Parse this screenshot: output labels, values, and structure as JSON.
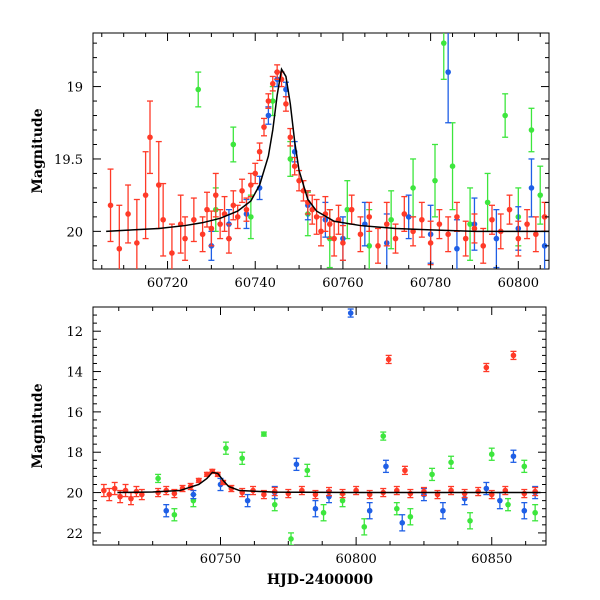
{
  "chart_data": [
    {
      "type": "scatter",
      "panel": "top",
      "ylabel": "Magnitude",
      "xlabel": "",
      "xlim": [
        60703,
        60807
      ],
      "ylim": [
        20.26,
        18.63
      ],
      "y_inverted": true,
      "x_ticks": [
        60720,
        60740,
        60760,
        60780,
        60800
      ],
      "y_ticks": [
        19,
        19.5,
        20
      ],
      "x_tick_labels": [
        "60720",
        "60740",
        "60760",
        "60780",
        "60800"
      ],
      "y_tick_labels": [
        "19",
        "19.5",
        "20"
      ],
      "grid": false,
      "legend": "none",
      "model_curve": {
        "color": "#000000",
        "x": [
          60706,
          60712,
          60718,
          60724,
          60728,
          60732,
          60736,
          60739,
          60741,
          60743,
          60744,
          60745,
          60746,
          60747,
          60748,
          60749,
          60750,
          60752,
          60754,
          60758,
          60764,
          60772,
          60780,
          60790,
          60800,
          60807
        ],
        "y": [
          20.0,
          19.99,
          19.98,
          19.96,
          19.94,
          19.91,
          19.86,
          19.79,
          19.68,
          19.48,
          19.3,
          19.06,
          18.88,
          18.93,
          19.12,
          19.38,
          19.58,
          19.78,
          19.86,
          19.93,
          19.96,
          19.98,
          19.99,
          20.0,
          20.0,
          20.0
        ]
      },
      "series": [
        {
          "color": "#ff3a28",
          "x": [
            60707,
            60709,
            60711,
            60713,
            60715,
            60716,
            60718,
            60719,
            60721,
            60723,
            60724,
            60726,
            60728,
            60729,
            60730,
            60731,
            60732,
            60733,
            60734,
            60735,
            60736,
            60737,
            60738,
            60739,
            60740,
            60741,
            60742,
            60743,
            60744,
            60745,
            60746,
            60747,
            60748,
            60749,
            60750,
            60751,
            60752,
            60753,
            60754,
            60755,
            60756,
            60757,
            60758,
            60759,
            60760,
            60762,
            60764,
            60766,
            60768,
            60770,
            60772,
            60774,
            60776,
            60778,
            60780,
            60782,
            60784,
            60786,
            60788,
            60790,
            60792,
            60794,
            60796,
            60798,
            60800,
            60802,
            60804,
            60806
          ],
          "y": [
            19.82,
            20.12,
            19.88,
            20.08,
            19.75,
            19.35,
            19.68,
            19.92,
            20.15,
            19.95,
            20.05,
            19.92,
            20.02,
            19.85,
            19.98,
            19.75,
            19.95,
            19.88,
            20.05,
            19.82,
            19.9,
            19.72,
            19.85,
            19.68,
            19.6,
            19.45,
            19.28,
            19.1,
            18.98,
            18.9,
            18.95,
            19.12,
            19.35,
            19.55,
            19.65,
            19.72,
            19.8,
            19.85,
            19.9,
            20.0,
            19.88,
            19.95,
            20.05,
            19.92,
            20.08,
            19.85,
            20.02,
            19.9,
            20.1,
            19.95,
            20.05,
            19.88,
            20.0,
            19.92,
            20.08,
            19.95,
            20.02,
            19.9,
            20.05,
            19.98,
            20.1,
            19.92,
            20.0,
            19.85,
            20.05,
            19.95,
            20.02,
            19.9
          ],
          "err": [
            0.25,
            0.3,
            0.2,
            0.3,
            0.3,
            0.25,
            0.3,
            0.25,
            0.2,
            0.2,
            0.15,
            0.15,
            0.12,
            0.12,
            0.12,
            0.15,
            0.1,
            0.12,
            0.1,
            0.1,
            0.08,
            0.08,
            0.08,
            0.08,
            0.07,
            0.06,
            0.06,
            0.05,
            0.05,
            0.05,
            0.05,
            0.05,
            0.06,
            0.06,
            0.07,
            0.07,
            0.08,
            0.1,
            0.12,
            0.1,
            0.12,
            0.1,
            0.12,
            0.1,
            0.12,
            0.1,
            0.12,
            0.1,
            0.12,
            0.15,
            0.1,
            0.12,
            0.1,
            0.12,
            0.15,
            0.1,
            0.12,
            0.1,
            0.12,
            0.1,
            0.12,
            0.1,
            0.12,
            0.1,
            0.12,
            0.1,
            0.12,
            0.1
          ]
        },
        {
          "color": "#1f5fe6",
          "x": [
            60730,
            60734,
            60738,
            60741,
            60743,
            60745,
            60747,
            60749,
            60752,
            60756,
            60760,
            60765,
            60770,
            60775,
            60780,
            60784,
            60786,
            60790,
            60795,
            60800,
            60803,
            60806
          ],
          "y": [
            20.1,
            19.95,
            19.88,
            19.7,
            19.2,
            18.95,
            19.02,
            19.45,
            19.82,
            19.92,
            20.05,
            19.95,
            20.08,
            19.9,
            20.02,
            18.9,
            20.12,
            19.95,
            20.05,
            19.98,
            19.7,
            20.1
          ],
          "err": [
            0.1,
            0.1,
            0.1,
            0.08,
            0.06,
            0.05,
            0.05,
            0.07,
            0.1,
            0.12,
            0.15,
            0.15,
            0.2,
            0.15,
            0.2,
            0.35,
            0.2,
            0.18,
            0.2,
            0.15,
            0.2,
            0.2
          ]
        },
        {
          "color": "#3de63d",
          "x": [
            60727,
            60731,
            60735,
            60739,
            60744,
            60748,
            60752,
            60757,
            60761,
            60766,
            60771,
            60776,
            60781,
            60783,
            60785,
            60789,
            60793,
            60797,
            60800,
            60803,
            60805
          ],
          "y": [
            19.02,
            19.85,
            19.4,
            19.9,
            19.1,
            19.5,
            19.88,
            20.05,
            19.85,
            20.1,
            19.92,
            19.7,
            19.65,
            18.7,
            19.55,
            19.95,
            19.8,
            19.2,
            19.9,
            19.3,
            19.75
          ],
          "err": [
            0.12,
            0.15,
            0.12,
            0.15,
            0.1,
            0.12,
            0.15,
            0.2,
            0.2,
            0.25,
            0.2,
            0.2,
            0.25,
            0.25,
            0.3,
            0.25,
            0.2,
            0.15,
            0.2,
            0.15,
            0.2
          ]
        }
      ]
    },
    {
      "type": "scatter",
      "panel": "bottom",
      "ylabel": "Magnitude",
      "xlabel": "HJD-2400000",
      "xlim": [
        60703,
        60870
      ],
      "ylim": [
        22.6,
        10.8
      ],
      "y_inverted": true,
      "x_ticks": [
        60750,
        60800,
        60850
      ],
      "y_ticks": [
        12,
        14,
        16,
        18,
        20,
        22
      ],
      "x_tick_labels": [
        "60750",
        "60800",
        "60850"
      ],
      "y_tick_labels": [
        "12",
        "14",
        "16",
        "18",
        "20",
        "22"
      ],
      "grid": false,
      "legend": "none",
      "model_curve": {
        "color": "#000000",
        "x": [
          60712,
          60725,
          60735,
          60742,
          60745,
          60747,
          60749,
          60751,
          60753,
          60757,
          60770,
          60800,
          60850,
          60868
        ],
        "y": [
          20.0,
          19.97,
          19.9,
          19.6,
          19.3,
          19.0,
          19.05,
          19.4,
          19.7,
          19.9,
          19.98,
          20.0,
          20.0,
          20.0
        ]
      },
      "series": [
        {
          "color": "#ff3a28",
          "x": [
            60707,
            60709,
            60711,
            60713,
            60715,
            60717,
            60719,
            60721,
            60727,
            60730,
            60733,
            60736,
            60739,
            60742,
            60745,
            60747,
            60749,
            60751,
            60754,
            60758,
            60762,
            60766,
            60770,
            60775,
            60780,
            60785,
            60790,
            60795,
            60800,
            60805,
            60810,
            60812,
            60815,
            60818,
            60820,
            60825,
            60830,
            60835,
            60840,
            60845,
            60848,
            60850,
            60855,
            60858,
            60862,
            60866
          ],
          "y": [
            19.9,
            20.1,
            19.8,
            20.2,
            19.9,
            20.3,
            19.95,
            20.1,
            20.0,
            19.9,
            20.05,
            19.8,
            19.7,
            19.4,
            19.1,
            18.95,
            19.1,
            19.5,
            19.8,
            20.0,
            19.9,
            20.1,
            19.95,
            20.05,
            19.9,
            20.1,
            19.95,
            20.05,
            19.9,
            20.1,
            20.0,
            13.4,
            19.9,
            18.9,
            20.05,
            19.95,
            20.1,
            19.9,
            20.05,
            19.95,
            13.8,
            20.1,
            19.9,
            13.2,
            20.05,
            19.95
          ],
          "err": [
            0.3,
            0.3,
            0.3,
            0.3,
            0.3,
            0.3,
            0.25,
            0.25,
            0.2,
            0.2,
            0.2,
            0.15,
            0.15,
            0.1,
            0.1,
            0.1,
            0.1,
            0.1,
            0.15,
            0.2,
            0.2,
            0.2,
            0.2,
            0.2,
            0.2,
            0.2,
            0.2,
            0.2,
            0.2,
            0.2,
            0.2,
            0.2,
            0.2,
            0.2,
            0.2,
            0.2,
            0.2,
            0.2,
            0.2,
            0.2,
            0.2,
            0.2,
            0.2,
            0.2,
            0.2,
            0.2
          ]
        },
        {
          "color": "#1f5fe6",
          "x": [
            60730,
            60740,
            60750,
            60760,
            60770,
            60778,
            60785,
            60790,
            60798,
            60805,
            60811,
            60817,
            60825,
            60832,
            60840,
            60848,
            60853,
            60858,
            60862,
            60866
          ],
          "y": [
            20.9,
            20.1,
            19.6,
            20.4,
            20.0,
            18.6,
            20.8,
            20.2,
            11.1,
            20.9,
            18.7,
            21.5,
            20.1,
            20.9,
            20.3,
            19.8,
            20.4,
            18.2,
            20.9,
            20.0
          ],
          "err": [
            0.3,
            0.2,
            0.3,
            0.3,
            0.3,
            0.3,
            0.4,
            0.3,
            0.2,
            0.4,
            0.3,
            0.4,
            0.3,
            0.4,
            0.3,
            0.3,
            0.4,
            0.3,
            0.4,
            0.3
          ]
        },
        {
          "color": "#3de63d",
          "x": [
            60727,
            60733,
            60740,
            60752,
            60758,
            60766,
            60770,
            60776,
            60782,
            60788,
            60795,
            60803,
            60810,
            60815,
            60820,
            60828,
            60835,
            60842,
            60850,
            60856,
            60862,
            60866
          ],
          "y": [
            19.3,
            21.1,
            20.4,
            17.8,
            18.3,
            17.1,
            20.6,
            22.3,
            18.9,
            21.0,
            20.4,
            21.7,
            17.2,
            20.8,
            21.2,
            19.1,
            18.5,
            21.4,
            18.1,
            20.6,
            18.7,
            21.0
          ],
          "err": [
            0.2,
            0.3,
            0.3,
            0.3,
            0.3,
            0.1,
            0.3,
            0.3,
            0.3,
            0.4,
            0.3,
            0.4,
            0.2,
            0.3,
            0.4,
            0.3,
            0.3,
            0.4,
            0.3,
            0.3,
            0.3,
            0.4
          ]
        }
      ]
    }
  ]
}
